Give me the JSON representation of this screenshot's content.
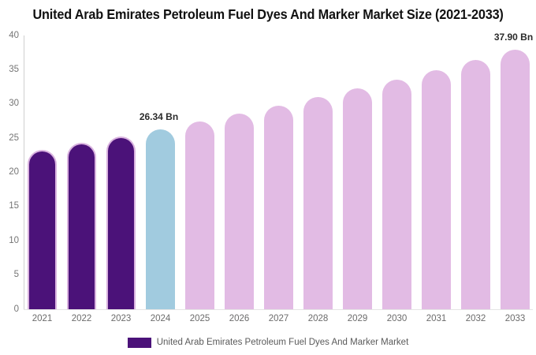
{
  "title": "United Arab Emirates Petroleum Fuel Dyes And Marker Market Size (2021-2033)",
  "legend": {
    "label": "United Arab Emirates Petroleum Fuel Dyes And Marker Market",
    "swatch_color": "#4B1279"
  },
  "colors": {
    "historical_fill": "#4B1279",
    "historical_stroke": "#D9B3DF",
    "current_fill": "#A1CBDF",
    "forecast_fill": "#E2BBE4",
    "axis_line": "#CFCFCF",
    "tick_text": "#757575",
    "annotation_text": "#2B2B2B"
  },
  "chart_data": {
    "type": "bar",
    "title": "United Arab Emirates Petroleum Fuel Dyes And Marker Market Size (2021-2033)",
    "unit": "Bn",
    "categories": [
      "2021",
      "2022",
      "2023",
      "2024",
      "2025",
      "2026",
      "2027",
      "2028",
      "2029",
      "2030",
      "2031",
      "2032",
      "2033"
    ],
    "values": [
      23.34,
      24.3,
      25.3,
      26.34,
      27.43,
      28.56,
      29.73,
      30.96,
      32.23,
      33.56,
      34.94,
      36.38,
      37.9
    ],
    "point_types": [
      "historical",
      "historical",
      "historical",
      "current",
      "forecast",
      "forecast",
      "forecast",
      "forecast",
      "forecast",
      "forecast",
      "forecast",
      "forecast",
      "forecast"
    ],
    "annotations": [
      {
        "index": 3,
        "text": "26.34 Bn"
      },
      {
        "index": 12,
        "text": "37.90 Bn"
      }
    ],
    "xlabel": "",
    "ylabel": "",
    "ylim": [
      0,
      40
    ],
    "yticks": [
      0,
      5,
      10,
      15,
      20,
      25,
      30,
      35,
      40
    ],
    "grid": false,
    "legend_position": "bottom"
  }
}
